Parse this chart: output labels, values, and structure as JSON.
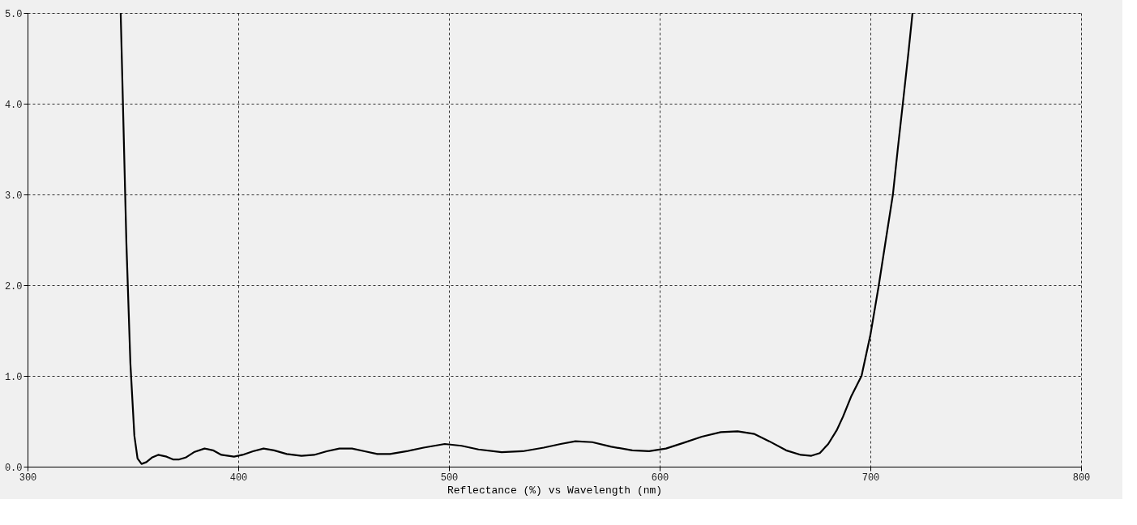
{
  "chart_data": {
    "type": "line",
    "xlabel": "Reflectance (%)  vs  Wavelength (nm)",
    "x": [
      344.2,
      345,
      346.9,
      348.8,
      350.7,
      352.2,
      354.1,
      356.4,
      359,
      362,
      366,
      369,
      372,
      375,
      379,
      384,
      388,
      392,
      398,
      402,
      407,
      412,
      417,
      423,
      430,
      436,
      442,
      448,
      454,
      460,
      466,
      472,
      480,
      488,
      498,
      506,
      514,
      525,
      535,
      545,
      553,
      560,
      568,
      577,
      587,
      595,
      603,
      611,
      620,
      629,
      637,
      645,
      652,
      660,
      667,
      672,
      676,
      680,
      684,
      687,
      691,
      695.8,
      700,
      704,
      707,
      710.7,
      713,
      715.4,
      718,
      720
    ],
    "series": [
      {
        "color": "#000000",
        "values": [
          5.0,
          4.25,
          2.47,
          1.14,
          0.34,
          0.09,
          0.03,
          0.05,
          0.1,
          0.13,
          0.11,
          0.08,
          0.08,
          0.1,
          0.16,
          0.2,
          0.18,
          0.13,
          0.11,
          0.13,
          0.17,
          0.2,
          0.18,
          0.14,
          0.12,
          0.13,
          0.17,
          0.2,
          0.2,
          0.17,
          0.14,
          0.14,
          0.17,
          0.21,
          0.25,
          0.23,
          0.19,
          0.16,
          0.17,
          0.21,
          0.25,
          0.28,
          0.27,
          0.22,
          0.18,
          0.17,
          0.2,
          0.26,
          0.33,
          0.38,
          0.39,
          0.36,
          0.28,
          0.18,
          0.13,
          0.12,
          0.15,
          0.25,
          0.4,
          0.55,
          0.78,
          1.0,
          1.45,
          2.0,
          2.45,
          3.0,
          3.5,
          4.0,
          4.55,
          5.0
        ]
      }
    ],
    "xlim": [
      300,
      800
    ],
    "xticks": [
      300,
      400,
      500,
      600,
      700,
      800
    ],
    "ylim": [
      0,
      5
    ],
    "yticks": [
      {
        "value": 0,
        "label": "0.0"
      },
      {
        "value": 1,
        "label": "1.0"
      },
      {
        "value": 2,
        "label": "2.0"
      },
      {
        "value": 3,
        "label": "3.0"
      },
      {
        "value": 4,
        "label": "4.0"
      },
      {
        "value": 5,
        "label": "5.0"
      }
    ],
    "grid": true,
    "line_style": "solid",
    "marker": "none"
  }
}
